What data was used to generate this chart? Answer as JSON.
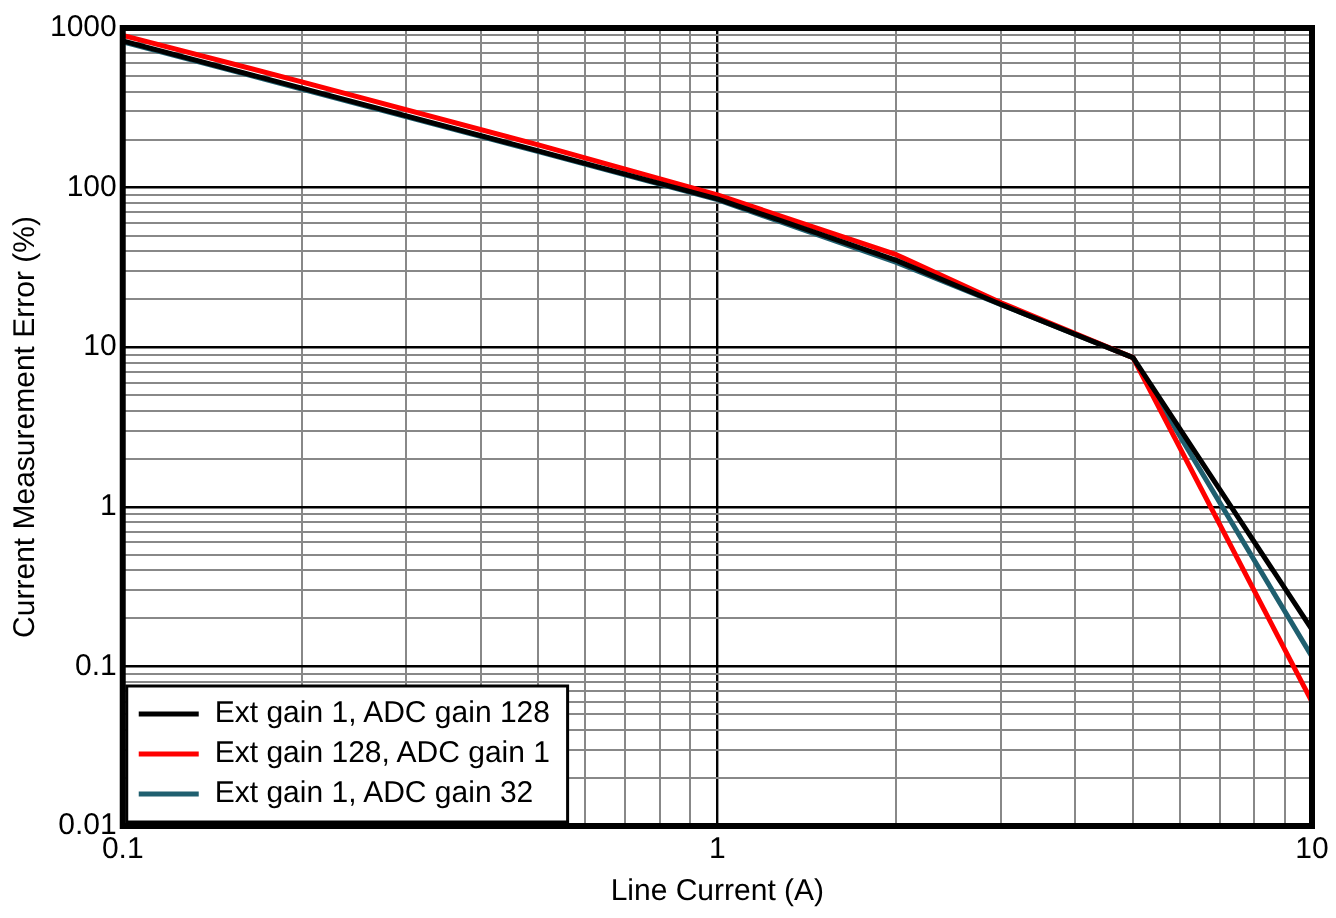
{
  "chart_data": {
    "type": "line",
    "xlabel": "Line Current (A)",
    "ylabel": "Current Measurement Error (%)",
    "log": "xy",
    "grid": true,
    "legend": "bottom left",
    "marker": "none",
    "line_style": "solid",
    "x": [
      0.1,
      0.2,
      0.5,
      1,
      2,
      3,
      5,
      10
    ],
    "xlim": [
      0.1,
      10
    ],
    "ylim": [
      0.01,
      1000
    ],
    "xticks": [
      0.1,
      {
        "value": 0.2,
        "label": null
      },
      {
        "value": 0.3,
        "label": null
      },
      {
        "value": 0.4,
        "label": null
      },
      {
        "value": 0.5,
        "label": null
      },
      {
        "value": 0.6,
        "label": null
      },
      {
        "value": 0.7,
        "label": null
      },
      {
        "value": 0.8,
        "label": null
      },
      {
        "value": 0.9,
        "label": null
      },
      1,
      {
        "value": 2,
        "label": null
      },
      {
        "value": 3,
        "label": null
      },
      {
        "value": 4,
        "label": null
      },
      {
        "value": 5,
        "label": null
      },
      {
        "value": 6,
        "label": null
      },
      {
        "value": 7,
        "label": null
      },
      {
        "value": 8,
        "label": null
      },
      {
        "value": 9,
        "label": null
      },
      10
    ],
    "yticks": [
      0.01,
      {
        "value": 0.02,
        "label": null
      },
      {
        "value": 0.03,
        "label": null
      },
      {
        "value": 0.04,
        "label": null
      },
      {
        "value": 0.05,
        "label": null
      },
      {
        "value": 0.06,
        "label": null
      },
      {
        "value": 0.07,
        "label": null
      },
      {
        "value": 0.08,
        "label": null
      },
      {
        "value": 0.09,
        "label": null
      },
      0.1,
      {
        "value": 0.2,
        "label": null
      },
      {
        "value": 0.3,
        "label": null
      },
      {
        "value": 0.4,
        "label": null
      },
      {
        "value": 0.5,
        "label": null
      },
      {
        "value": 0.6,
        "label": null
      },
      {
        "value": 0.7,
        "label": null
      },
      {
        "value": 0.8,
        "label": null
      },
      {
        "value": 0.9,
        "label": null
      },
      1,
      {
        "value": 2,
        "label": null
      },
      {
        "value": 3,
        "label": null
      },
      {
        "value": 4,
        "label": null
      },
      {
        "value": 5,
        "label": null
      },
      {
        "value": 6,
        "label": null
      },
      {
        "value": 7,
        "label": null
      },
      {
        "value": 8,
        "label": null
      },
      {
        "value": 9,
        "label": null
      },
      10,
      {
        "value": 20,
        "label": null
      },
      {
        "value": 30,
        "label": null
      },
      {
        "value": 40,
        "label": null
      },
      {
        "value": 50,
        "label": null
      },
      {
        "value": 60,
        "label": null
      },
      {
        "value": 70,
        "label": null
      },
      {
        "value": 80,
        "label": null
      },
      {
        "value": 90,
        "label": null
      },
      100,
      {
        "value": 200,
        "label": null
      },
      {
        "value": 300,
        "label": null
      },
      {
        "value": 400,
        "label": null
      },
      {
        "value": 500,
        "label": null
      },
      {
        "value": 600,
        "label": null
      },
      {
        "value": 700,
        "label": null
      },
      {
        "value": 800,
        "label": null
      },
      {
        "value": 900,
        "label": null
      },
      1000
    ],
    "series": [
      {
        "name": "Ext gain 1, ADC gain 128",
        "color": "#000000",
        "values": [
          830,
          420,
          170,
          85,
          35,
          18.5,
          8.6,
          0.17
        ]
      },
      {
        "name": "Ext gain 128, ADC gain 1",
        "color": "#ff0000",
        "values": [
          900,
          460,
          185,
          90,
          38,
          19,
          8.6,
          0.06
        ]
      },
      {
        "name": "Ext gain 1, ADC gain 32",
        "color": "#1f5f6f",
        "values": [
          820,
          415,
          168,
          84,
          34,
          18.5,
          8.6,
          0.115
        ]
      }
    ]
  }
}
